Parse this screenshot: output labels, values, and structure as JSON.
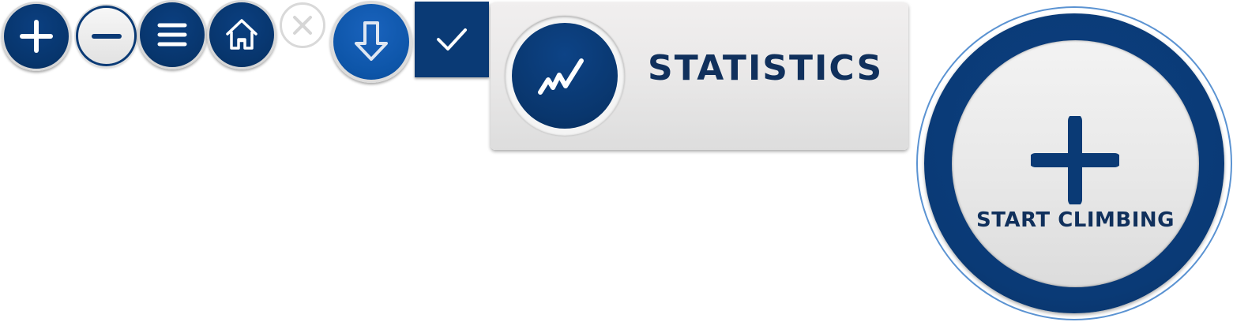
{
  "toolbar": {
    "buttons": [
      {
        "icon": "plus-icon",
        "style": "dark"
      },
      {
        "icon": "minus-icon",
        "style": "light"
      },
      {
        "icon": "menu-icon",
        "style": "dark"
      },
      {
        "icon": "home-icon",
        "style": "dark"
      },
      {
        "icon": "close-icon",
        "style": "disabled"
      },
      {
        "icon": "arrow-down-icon",
        "style": "blue"
      },
      {
        "icon": "check-icon",
        "style": "dark-square"
      }
    ]
  },
  "statistics_card": {
    "icon": "chart-line-icon",
    "label": "STATISTICS"
  },
  "start_button": {
    "icon": "plus-icon",
    "label": "START CLIMBING"
  },
  "colors": {
    "navy": "#0a3a75",
    "text_navy": "#10305c",
    "blue": "#0d55a8",
    "ring_outline": "#5b93d2",
    "card_bg": "#e9e8e8"
  }
}
